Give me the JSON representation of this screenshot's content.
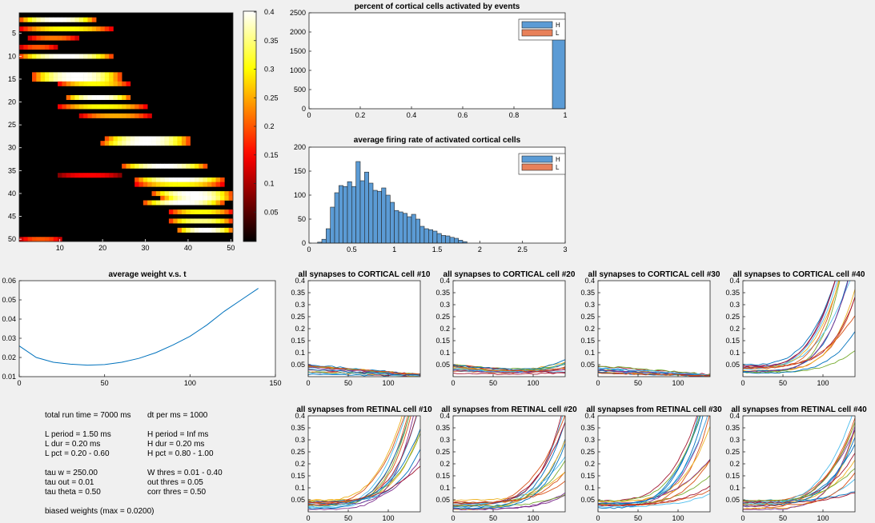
{
  "panels": {
    "heatmap": {
      "rows": 50,
      "cols": 50,
      "vmax": 0.4,
      "xticks": [
        10,
        20,
        30,
        40,
        50
      ],
      "yticks": [
        5,
        10,
        15,
        20,
        25,
        30,
        35,
        40,
        45,
        50
      ],
      "colorbar_ticks": [
        "0.05",
        "0.1",
        "0.15",
        "0.2",
        "0.25",
        "0.3",
        "0.35",
        "0.4"
      ],
      "blobs": [
        {
          "r": 2,
          "c1": 1,
          "c2": 18,
          "v": 0.4
        },
        {
          "r": 4,
          "c1": 1,
          "c2": 22,
          "v": 0.3
        },
        {
          "r": 6,
          "c1": 3,
          "c2": 14,
          "v": 0.22
        },
        {
          "r": 8,
          "c1": 1,
          "c2": 9,
          "v": 0.2
        },
        {
          "r": 10,
          "c1": 1,
          "c2": 22,
          "v": 0.4
        },
        {
          "r": 14,
          "c1": 4,
          "c2": 24,
          "v": 0.4
        },
        {
          "r": 15,
          "c1": 4,
          "c2": 24,
          "v": 0.4
        },
        {
          "r": 16,
          "c1": 10,
          "c2": 26,
          "v": 0.3
        },
        {
          "r": 19,
          "c1": 12,
          "c2": 26,
          "v": 0.4
        },
        {
          "r": 21,
          "c1": 10,
          "c2": 30,
          "v": 0.3
        },
        {
          "r": 23,
          "c1": 15,
          "c2": 31,
          "v": 0.25
        },
        {
          "r": 28,
          "c1": 21,
          "c2": 40,
          "v": 0.4
        },
        {
          "r": 29,
          "c1": 20,
          "c2": 40,
          "v": 0.4
        },
        {
          "r": 34,
          "c1": 25,
          "c2": 44,
          "v": 0.4
        },
        {
          "r": 36,
          "c1": 10,
          "c2": 24,
          "v": 0.15
        },
        {
          "r": 37,
          "c1": 28,
          "c2": 48,
          "v": 0.4
        },
        {
          "r": 38,
          "c1": 28,
          "c2": 48,
          "v": 0.3
        },
        {
          "r": 40,
          "c1": 32,
          "c2": 50,
          "v": 0.4
        },
        {
          "r": 41,
          "c1": 34,
          "c2": 50,
          "v": 0.4
        },
        {
          "r": 42,
          "c1": 30,
          "c2": 48,
          "v": 0.4
        },
        {
          "r": 44,
          "c1": 36,
          "c2": 50,
          "v": 0.3
        },
        {
          "r": 46,
          "c1": 36,
          "c2": 50,
          "v": 0.35
        },
        {
          "r": 48,
          "c1": 38,
          "c2": 50,
          "v": 0.4
        },
        {
          "r": 50,
          "c1": 1,
          "c2": 10,
          "v": 0.2
        }
      ]
    },
    "pct": {
      "title": "percent of cortical cells activated by events",
      "xlim": [
        0,
        1
      ],
      "ylim": [
        0,
        2500
      ],
      "xticks": [
        "0",
        "0.2",
        "0.4",
        "0.6",
        "0.8",
        "1"
      ],
      "yticks": [
        "0",
        "500",
        "1000",
        "1500",
        "2000",
        "2500"
      ],
      "legend": [
        "H",
        "L"
      ],
      "bars": [
        {
          "x0": 0.95,
          "x1": 1.0,
          "h": 2000
        }
      ]
    },
    "rate": {
      "title": "average firing rate of activated cortical cells",
      "xlim": [
        0,
        3
      ],
      "ylim": [
        0,
        200
      ],
      "xticks": [
        "0",
        "0.5",
        "1",
        "1.5",
        "2",
        "2.5",
        "3"
      ],
      "yticks": [
        "0",
        "50",
        "100",
        "150",
        "200"
      ],
      "legend": [
        "H",
        "L"
      ],
      "bin_start": 0.1,
      "bin_width": 0.05,
      "counts": [
        2,
        8,
        30,
        75,
        105,
        120,
        118,
        128,
        118,
        170,
        130,
        148,
        125,
        110,
        108,
        115,
        100,
        85,
        68,
        65,
        62,
        55,
        60,
        50,
        35,
        30,
        28,
        25,
        20,
        16,
        15,
        12,
        10,
        6,
        3
      ]
    },
    "weight": {
      "title": "average weight v.s. t",
      "xlim": [
        0,
        150
      ],
      "ylim": [
        0.01,
        0.06
      ],
      "xticks": [
        "0",
        "50",
        "100",
        "150"
      ],
      "yticks": [
        "0.01",
        "0.02",
        "0.03",
        "0.04",
        "0.05",
        "0.06"
      ],
      "x": [
        0,
        10,
        20,
        30,
        40,
        50,
        60,
        70,
        80,
        90,
        100,
        110,
        120,
        130,
        140
      ],
      "y": [
        0.026,
        0.02,
        0.0175,
        0.0165,
        0.016,
        0.0163,
        0.0175,
        0.0195,
        0.0225,
        0.0265,
        0.031,
        0.037,
        0.044,
        0.05,
        0.056
      ]
    },
    "small_titles": [
      "all synapses to CORTICAL cell #10",
      "all synapses to CORTICAL cell #20",
      "all synapses to CORTICAL cell #30",
      "all synapses to CORTICAL cell #40",
      "all synapses from RETINAL cell #10",
      "all synapses from RETINAL cell #20",
      "all synapses from RETINAL cell #30",
      "all synapses from RETINAL cell #40"
    ],
    "small_xticks": [
      "0",
      "50",
      "100"
    ],
    "small_yticks": [
      "0.05",
      "0.1",
      "0.15",
      "0.2",
      "0.25",
      "0.3",
      "0.35",
      "0.4"
    ],
    "small_growth": [
      0.0,
      0.1,
      0.0,
      1.0,
      0.9,
      0.6,
      0.75,
      0.55
    ]
  },
  "info": {
    "col1": [
      "total run time = 7000 ms",
      "",
      "L period = 1.50 ms",
      "L dur = 0.20 ms",
      "L pct = 0.20 - 0.60",
      "",
      "tau w = 250.00",
      "tau out = 0.01",
      "tau theta = 0.50",
      "",
      "biased weights (max = 0.0200)"
    ],
    "col2": [
      "dt per ms = 1000",
      "",
      "H period = Inf ms",
      "H dur = 0.20 ms",
      "H pct = 0.80 - 1.00",
      "",
      "W thres = 0.01 - 0.40",
      "out thres = 0.05",
      "corr thres = 0.50",
      "",
      ""
    ]
  }
}
